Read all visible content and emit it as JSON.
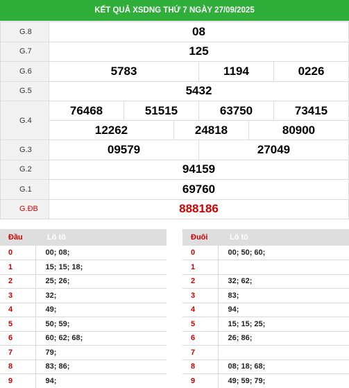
{
  "header": {
    "title": "KẾT QUẢ XSDNG THỨ 7 NGÀY 27/09/2025"
  },
  "prizes": [
    {
      "label": "G.8",
      "numbers": [
        "08"
      ]
    },
    {
      "label": "G.7",
      "numbers": [
        "125"
      ]
    },
    {
      "label": "G.6",
      "numbers": [
        "5783",
        "1194",
        "0226"
      ]
    },
    {
      "label": "G.5",
      "numbers": [
        "5432"
      ]
    },
    {
      "label": "G.4",
      "numbers": [
        "76468",
        "51515",
        "63750",
        "73415",
        "12262",
        "24818",
        "80900"
      ]
    },
    {
      "label": "G.3",
      "numbers": [
        "09579",
        "27049"
      ]
    },
    {
      "label": "G.2",
      "numbers": [
        "94159"
      ]
    },
    {
      "label": "G.1",
      "numbers": [
        "69760"
      ]
    },
    {
      "label": "G.ĐB",
      "numbers": [
        "888186"
      ]
    }
  ],
  "loto_head": {
    "col1": "Đầu",
    "col2": "Lô tô",
    "rows": [
      {
        "key": "0",
        "value": "00; 08;"
      },
      {
        "key": "1",
        "value": "15; 15; 18;"
      },
      {
        "key": "2",
        "value": "25; 26;"
      },
      {
        "key": "3",
        "value": "32;"
      },
      {
        "key": "4",
        "value": "49;"
      },
      {
        "key": "5",
        "value": "50; 59;"
      },
      {
        "key": "6",
        "value": "60; 62; 68;"
      },
      {
        "key": "7",
        "value": "79;"
      },
      {
        "key": "8",
        "value": "83; 86;"
      },
      {
        "key": "9",
        "value": "94;"
      }
    ]
  },
  "loto_tail": {
    "col1": "Đuôi",
    "col2": "Lô tô",
    "rows": [
      {
        "key": "0",
        "value": "00; 50; 60;"
      },
      {
        "key": "1",
        "value": ""
      },
      {
        "key": "2",
        "value": "32; 62;"
      },
      {
        "key": "3",
        "value": "83;"
      },
      {
        "key": "4",
        "value": "94;"
      },
      {
        "key": "5",
        "value": "15; 15; 25;"
      },
      {
        "key": "6",
        "value": "26; 86;"
      },
      {
        "key": "7",
        "value": ""
      },
      {
        "key": "8",
        "value": "08; 18; 68;"
      },
      {
        "key": "9",
        "value": "49; 59; 79;"
      }
    ]
  },
  "colors": {
    "header_bg": "#2fae3a",
    "special": "#d10000"
  }
}
